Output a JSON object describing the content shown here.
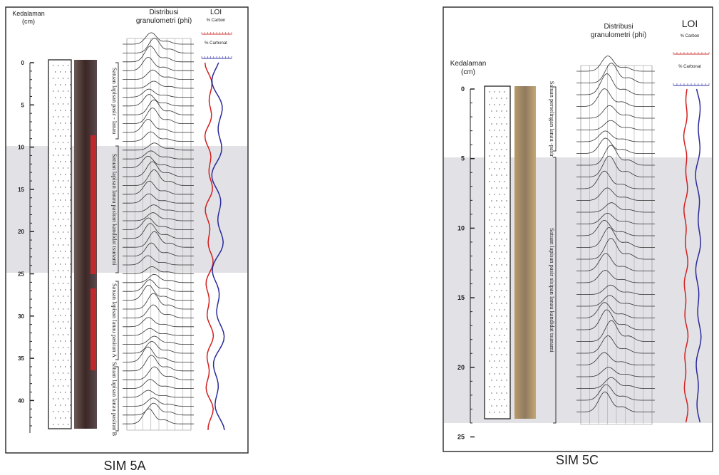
{
  "panels": [
    {
      "caption": "SIM 5A",
      "depth_label": [
        "Kedalaman",
        "(cm)"
      ],
      "depth_ticks": [
        0,
        5,
        10,
        15,
        20,
        25,
        30,
        35,
        40
      ],
      "granulometry_title": [
        "Distribusi",
        "granulometri (phi)"
      ],
      "loi_title": "LOI",
      "carbon_label": "% Carbon",
      "carbonat_label": "% Carbonat",
      "units": [
        "Satuan lapisan pasir - lanau",
        "Satuan lapisan lanau pasiran kandidat tsunami",
        "Satuan lapisan lanau pasiran A",
        "Satuan lapisan lanau pasiran B"
      ]
    },
    {
      "caption": "SIM 5C",
      "depth_label": [
        "Kedalaman",
        "(cm)"
      ],
      "depth_ticks": [
        0,
        5,
        10,
        15,
        20,
        25
      ],
      "granulometry_title": [
        "Distribusi",
        "granulometri (phi)"
      ],
      "loi_title": "LOI",
      "carbon_label": "% Carbon",
      "carbonat_label": "% Carbonat",
      "units": [
        "Satuan perselingan lanau -pasir",
        "Satuan lapisan pasir sisipan lanau kandidat tsunami"
      ]
    }
  ]
}
